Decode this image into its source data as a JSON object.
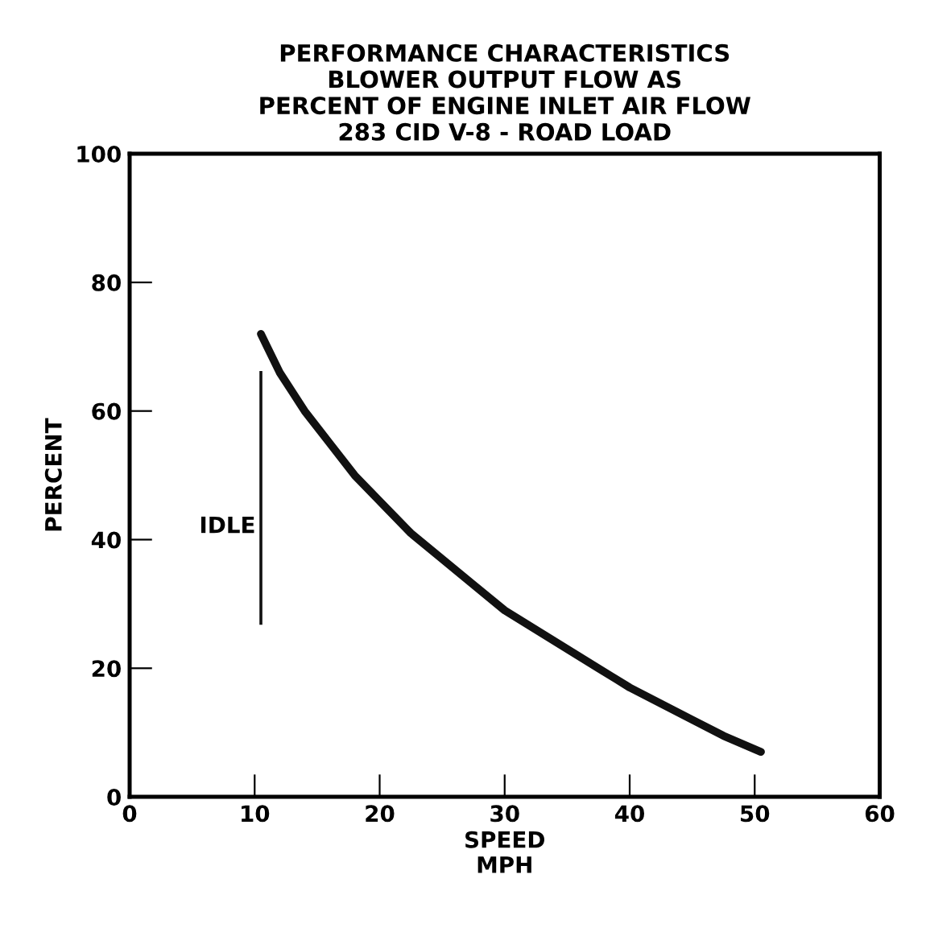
{
  "chart_data": {
    "type": "line",
    "title": "PERFORMANCE CHARACTERISTICS\nBLOWER OUTPUT FLOW AS\nPERCENT OF ENGINE INLET AIR FLOW\n283 CID V-8 - ROAD LOAD",
    "xlabel": "SPEED\nMPH",
    "ylabel": "PERCENT",
    "x": [
      10.5,
      11,
      12,
      13,
      14,
      16,
      18,
      20,
      22.5,
      25,
      27.5,
      30,
      32.5,
      35,
      37.5,
      40,
      42.5,
      45,
      47.5,
      50.5
    ],
    "series": [
      {
        "color": "#111111",
        "values": [
          72,
          70,
          66,
          63,
          60,
          55,
          50,
          46,
          41,
          37,
          33,
          29,
          26,
          23,
          20,
          17,
          14.5,
          12,
          9.5,
          7
        ]
      }
    ],
    "annotations": [
      "IDLE"
    ],
    "xlim": [
      0,
      60
    ],
    "ylim": [
      0,
      100
    ],
    "xticks": [
      0,
      10,
      20,
      30,
      40,
      50,
      60
    ],
    "yticks": [
      0,
      20,
      40,
      60,
      80,
      100
    ],
    "grid": false,
    "legend": false,
    "marker": "none",
    "line_style": "solid"
  }
}
